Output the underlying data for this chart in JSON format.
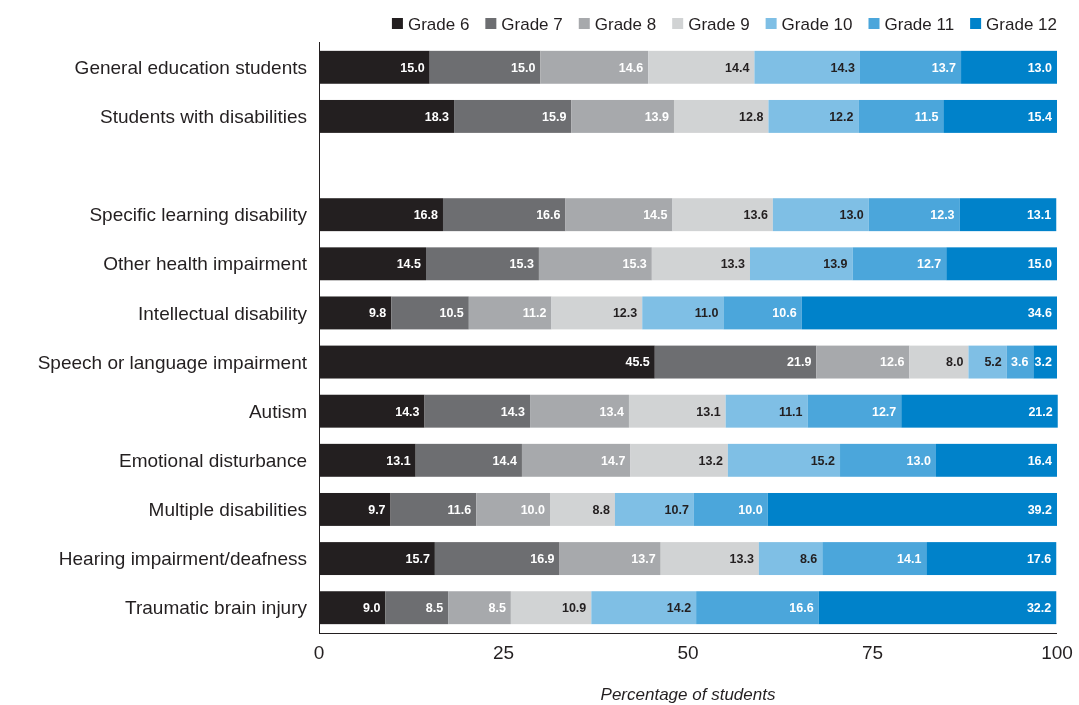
{
  "chart_data": {
    "type": "bar",
    "orientation": "horizontal",
    "stacked": true,
    "xlabel": "Percentage of students",
    "categories": [
      "General education students",
      "Students with disabilities",
      null,
      "Specific learning disability",
      "Other health impairment",
      "Intellectual disability",
      "Speech or language impairment",
      "Autism",
      "Emotional disturbance",
      "Multiple disabilities",
      "Hearing impairment/deafness",
      "Traumatic brain injury"
    ],
    "series": [
      {
        "name": "Grade 6",
        "color": "#231f20",
        "values": [
          15.0,
          18.3,
          null,
          16.8,
          14.5,
          9.8,
          45.5,
          14.3,
          13.1,
          9.7,
          15.7,
          9.0
        ],
        "value_labels": [
          "15.0",
          "18.3",
          null,
          "16.8",
          "14.5",
          "9.8",
          "45.5",
          "14.3",
          "13.1",
          "9.7",
          "15.7",
          "9.0"
        ]
      },
      {
        "name": "Grade 7",
        "color": "#6d6e71",
        "values": [
          15.0,
          15.9,
          null,
          16.6,
          15.3,
          10.5,
          21.9,
          14.3,
          14.4,
          11.6,
          16.9,
          8.5
        ],
        "value_labels": [
          "15.0",
          "15.9",
          null,
          "16.6",
          "15.3",
          "10.5",
          "21.9",
          "14.3",
          "14.4",
          "11.6",
          "16.9",
          "8.5"
        ]
      },
      {
        "name": "Grade 8",
        "color": "#a7a9ac",
        "values": [
          14.6,
          13.9,
          null,
          14.5,
          15.3,
          11.2,
          12.6,
          13.4,
          14.7,
          10.0,
          13.7,
          8.5
        ],
        "value_labels": [
          "14.6",
          "13.9",
          null,
          "14.5",
          "15.3",
          "11.2",
          "12.6",
          "13.4",
          "14.7",
          "10.0",
          "13.7",
          "8.5"
        ]
      },
      {
        "name": "Grade 9",
        "color": "#d1d3d4",
        "values": [
          14.4,
          12.8,
          null,
          13.6,
          13.3,
          12.3,
          8.0,
          13.1,
          13.2,
          8.8,
          13.3,
          10.9
        ],
        "value_labels": [
          "14.4",
          "12.8",
          null,
          "13.6",
          "13.3",
          "12.3",
          "8.0",
          "13.1",
          "13.2",
          "8.8",
          "13.3",
          "10.9"
        ]
      },
      {
        "name": "Grade 10",
        "color": "#7fbfe5",
        "values": [
          14.3,
          12.2,
          null,
          13.0,
          13.9,
          11.0,
          5.2,
          11.1,
          15.2,
          10.7,
          8.6,
          14.2
        ],
        "value_labels": [
          "14.3",
          "12.2",
          null,
          "13.0",
          "13.9",
          "11.0",
          "5.2",
          "11.1",
          "15.2",
          "10.7",
          "8.6",
          "14.2"
        ]
      },
      {
        "name": "Grade 11",
        "color": "#4ba6db",
        "values": [
          13.7,
          11.5,
          null,
          12.3,
          12.7,
          10.6,
          3.6,
          12.7,
          13.0,
          10.0,
          14.1,
          16.6
        ],
        "value_labels": [
          "13.7",
          "11.5",
          null,
          "12.3",
          "12.7",
          "10.6",
          "3.6",
          "12.7",
          "13.0",
          "10.0",
          "14.1",
          "16.6"
        ]
      },
      {
        "name": "Grade 12",
        "color": "#0082ca",
        "values": [
          13.0,
          15.4,
          null,
          13.1,
          15.0,
          34.6,
          3.2,
          21.2,
          16.4,
          39.2,
          17.6,
          32.2
        ],
        "value_labels": [
          "13.0",
          "15.4",
          null,
          "13.1",
          "15.0",
          "34.6",
          "3.2",
          "21.2",
          "16.4",
          "39.2",
          "17.6",
          "32.2"
        ]
      }
    ],
    "xlim": [
      0,
      100
    ],
    "xticks": [
      0,
      25,
      50,
      75,
      100
    ],
    "legend": "top",
    "grid": false
  }
}
